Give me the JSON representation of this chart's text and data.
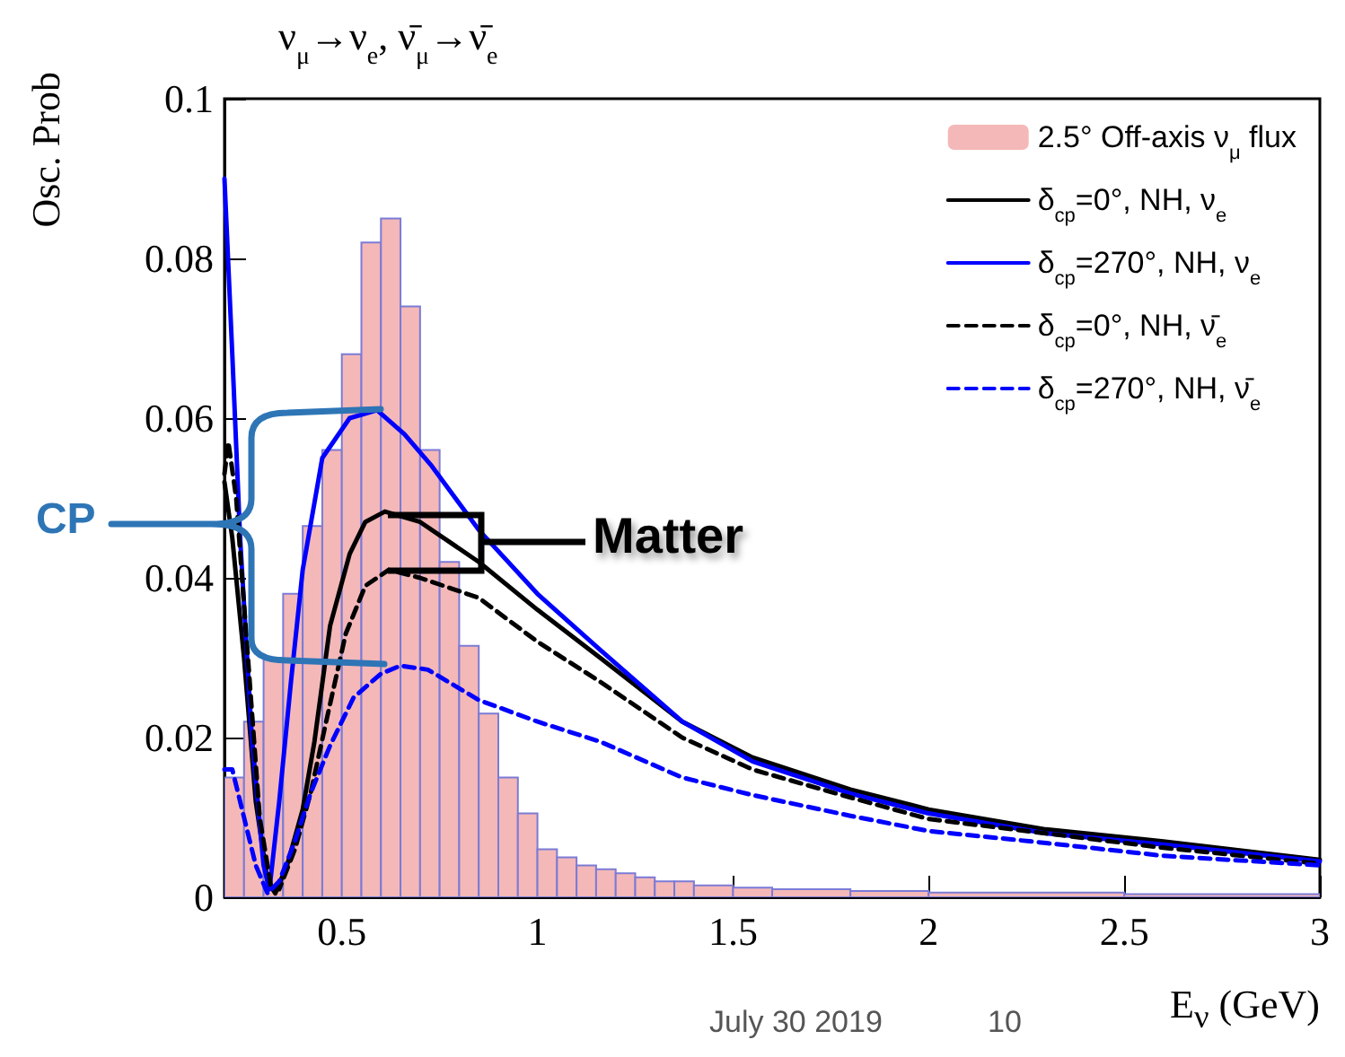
{
  "chart_data": {
    "type": "line",
    "title": "ν$_{μ}$→ν$_{e}$, ν̄$_{μ}$→ν̄$_{e}$",
    "xlabel": "E$_{ν}$ (GeV)",
    "ylabel": "Osc. Prob",
    "xlim": [
      0.2,
      3
    ],
    "xticks": [
      0.5,
      1,
      1.5,
      2,
      2.5,
      3
    ],
    "ylim": [
      0,
      0.1
    ],
    "yticks": [
      0,
      0.02,
      0.04,
      0.06,
      0.08,
      0.1
    ],
    "legend": "top right",
    "marker": "none",
    "annotations": [
      {
        "text": "CP",
        "x": 0.59,
        "y": 0.061
      },
      "Matter",
      "July 30 2019",
      "10"
    ],
    "series": [
      {
        "type": "histogram",
        "name": "2.5° Off-axis ν$_{μ}$ flux",
        "color": "#f4b8b8",
        "bins": [
          0.2,
          0.25,
          0.3,
          0.35,
          0.4,
          0.45,
          0.5,
          0.55,
          0.6,
          0.65,
          0.7,
          0.75,
          0.8,
          0.85,
          0.9,
          0.95,
          1.0,
          1.05,
          1.1,
          1.15,
          1.2,
          1.25,
          1.3,
          1.35,
          1.4,
          1.5,
          1.6,
          1.8,
          2.0,
          2.5,
          3.0
        ],
        "values": [
          0.015,
          0.022,
          0.03,
          0.038,
          0.0465,
          0.056,
          0.068,
          0.082,
          0.085,
          0.074,
          0.056,
          0.042,
          0.0315,
          0.023,
          0.015,
          0.0105,
          0.006,
          0.005,
          0.004,
          0.0035,
          0.003,
          0.0025,
          0.002,
          0.002,
          0.0015,
          0.0012,
          0.001,
          0.0008,
          0.0006,
          0.0004
        ]
      },
      {
        "type": "line",
        "name": "δ$_{cp}$=0°, NH, ν$_{e}$",
        "color": "#000000",
        "line_style": "solid",
        "x": [
          0.2,
          0.22,
          0.25,
          0.28,
          0.31,
          0.33,
          0.36,
          0.4,
          0.43,
          0.47,
          0.52,
          0.56,
          0.61,
          0.7,
          0.85,
          1.0,
          1.16,
          1.37,
          1.55,
          1.8,
          2.0,
          2.3,
          2.6,
          3.0
        ],
        "values": [
          0.052,
          0.045,
          0.03,
          0.012,
          0.002,
          0.0005,
          0.004,
          0.011,
          0.0195,
          0.034,
          0.043,
          0.047,
          0.0483,
          0.047,
          0.042,
          0.036,
          0.03,
          0.022,
          0.0175,
          0.0135,
          0.011,
          0.0085,
          0.007,
          0.0047
        ]
      },
      {
        "type": "line",
        "name": "δ$_{cp}$=270°, NH, ν$_{e}$",
        "color": "#0000ff",
        "line_style": "solid",
        "x": [
          0.2,
          0.22,
          0.24,
          0.27,
          0.3,
          0.315,
          0.34,
          0.37,
          0.4,
          0.45,
          0.52,
          0.59,
          0.66,
          0.73,
          0.85,
          1.0,
          1.16,
          1.37,
          1.55,
          1.8,
          2.0,
          2.3,
          2.6,
          3.0
        ],
        "values": [
          0.09,
          0.068,
          0.045,
          0.02,
          0.004,
          0.001,
          0.012,
          0.027,
          0.041,
          0.055,
          0.06,
          0.061,
          0.058,
          0.054,
          0.046,
          0.038,
          0.031,
          0.022,
          0.017,
          0.013,
          0.0105,
          0.008,
          0.0066,
          0.0045
        ]
      },
      {
        "type": "line",
        "name": "δ$_{cp}$=0°, NH, ν̄$_{e}$",
        "color": "#000000",
        "line_style": "dashed",
        "x": [
          0.2,
          0.21,
          0.23,
          0.26,
          0.29,
          0.32,
          0.34,
          0.38,
          0.42,
          0.46,
          0.51,
          0.56,
          0.62,
          0.7,
          0.85,
          1.0,
          1.16,
          1.37,
          1.55,
          1.8,
          2.0,
          2.3,
          2.6,
          3.0
        ],
        "values": [
          0.053,
          0.057,
          0.05,
          0.03,
          0.01,
          0.001,
          0.001,
          0.006,
          0.013,
          0.022,
          0.033,
          0.039,
          0.041,
          0.04,
          0.0375,
          0.032,
          0.027,
          0.02,
          0.016,
          0.0125,
          0.0098,
          0.008,
          0.0062,
          0.0042
        ]
      },
      {
        "type": "line",
        "name": "δ$_{cp}$=270°, NH, ν̄$_{e}$",
        "color": "#0000ff",
        "line_style": "dashed",
        "x": [
          0.2,
          0.22,
          0.25,
          0.28,
          0.31,
          0.34,
          0.38,
          0.42,
          0.47,
          0.53,
          0.6,
          0.65,
          0.72,
          0.85,
          1.0,
          1.16,
          1.37,
          1.55,
          1.8,
          2.0,
          2.3,
          2.6,
          3.0
        ],
        "values": [
          0.016,
          0.016,
          0.01,
          0.004,
          0.0005,
          0.002,
          0.007,
          0.013,
          0.019,
          0.025,
          0.028,
          0.029,
          0.0285,
          0.0247,
          0.022,
          0.0195,
          0.015,
          0.0128,
          0.0102,
          0.0083,
          0.0068,
          0.0052,
          0.004
        ]
      }
    ]
  }
}
